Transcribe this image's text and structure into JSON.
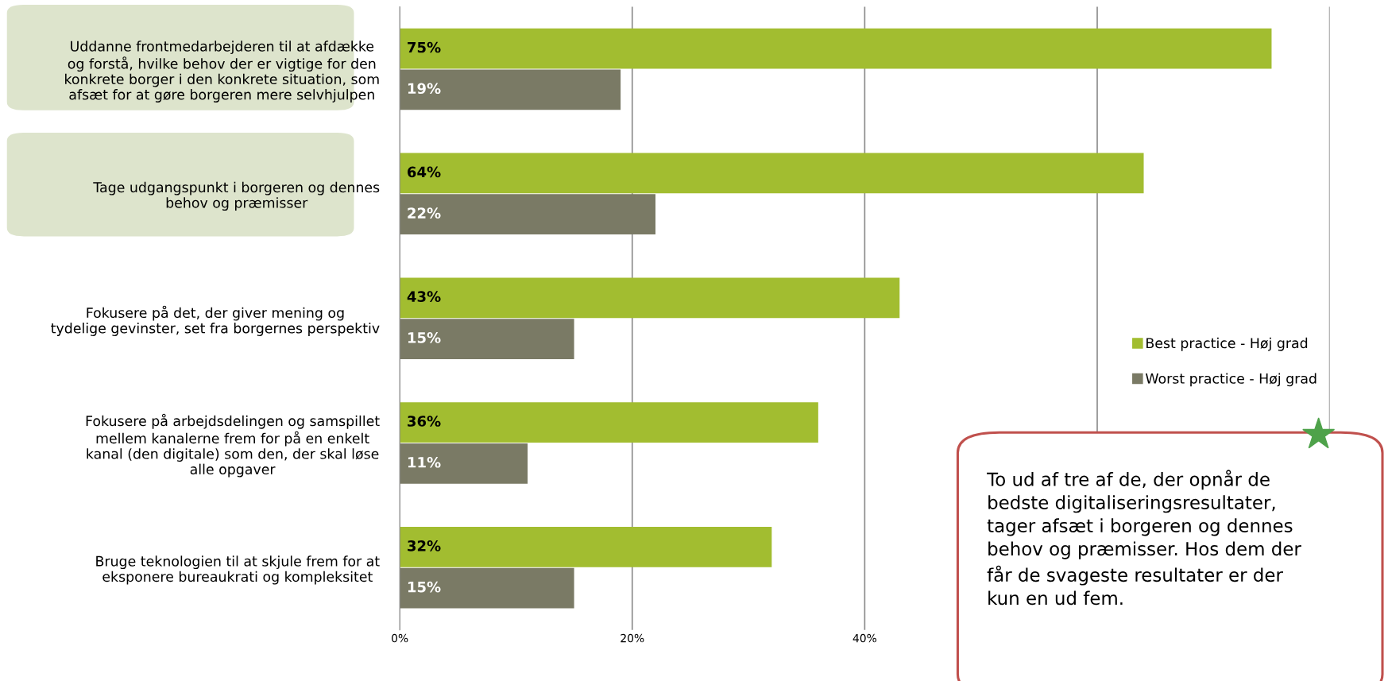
{
  "chart_data": {
    "type": "bar",
    "orientation": "horizontal",
    "categories": [
      "Uddanne frontmedarbejderen til at afdække\nog forstå, hvilke behov der er vigtige for den\nkonkrete borger i den konkrete situation, som\nafsæt for at gøre borgeren mere selvhjulpen",
      "Tage udgangspunkt i borgeren og dennes\nbehov og præmisser",
      "Fokusere på det, der giver mening og\ntydelige gevinster, set fra borgernes perspektiv",
      "Fokusere på arbejdsdelingen og samspillet\nmellem kanalerne frem for på en enkelt\nkanal (den digitale) som den, der skal løse\nalle opgaver",
      "Bruge teknologien til at skjule frem for at\neksponere bureaukrati og kompleksitet"
    ],
    "series": [
      {
        "name": "Best practice - Høj grad",
        "color": "#a2bd30",
        "values": [
          75,
          64,
          43,
          36,
          32
        ],
        "value_labels": [
          "75%",
          "64%",
          "43%",
          "36%",
          "32%"
        ]
      },
      {
        "name": "Worst practice - Høj grad",
        "color": "#7a7a65",
        "values": [
          19,
          22,
          15,
          11,
          15
        ],
        "value_labels": [
          "19%",
          "22%",
          "15%",
          "11%",
          "15%"
        ]
      }
    ],
    "xlim": [
      0,
      80
    ],
    "xticks": [
      {
        "value": 0,
        "label": "0%"
      },
      {
        "value": 20,
        "label": "20%"
      },
      {
        "value": 40,
        "label": "40%"
      },
      {
        "value": 60,
        "label": null
      },
      {
        "value": 80,
        "label": null
      }
    ],
    "grid": "x",
    "legend": "right",
    "annotations": [
      "To ud af tre af de, der opnår de\nbedste digitaliseringsresultater,\ntager afsæt i borgeren og dennes\nbehov og præmisser. Hos dem der\nfår de svageste resultater er der\nkun en ud fem."
    ]
  }
}
